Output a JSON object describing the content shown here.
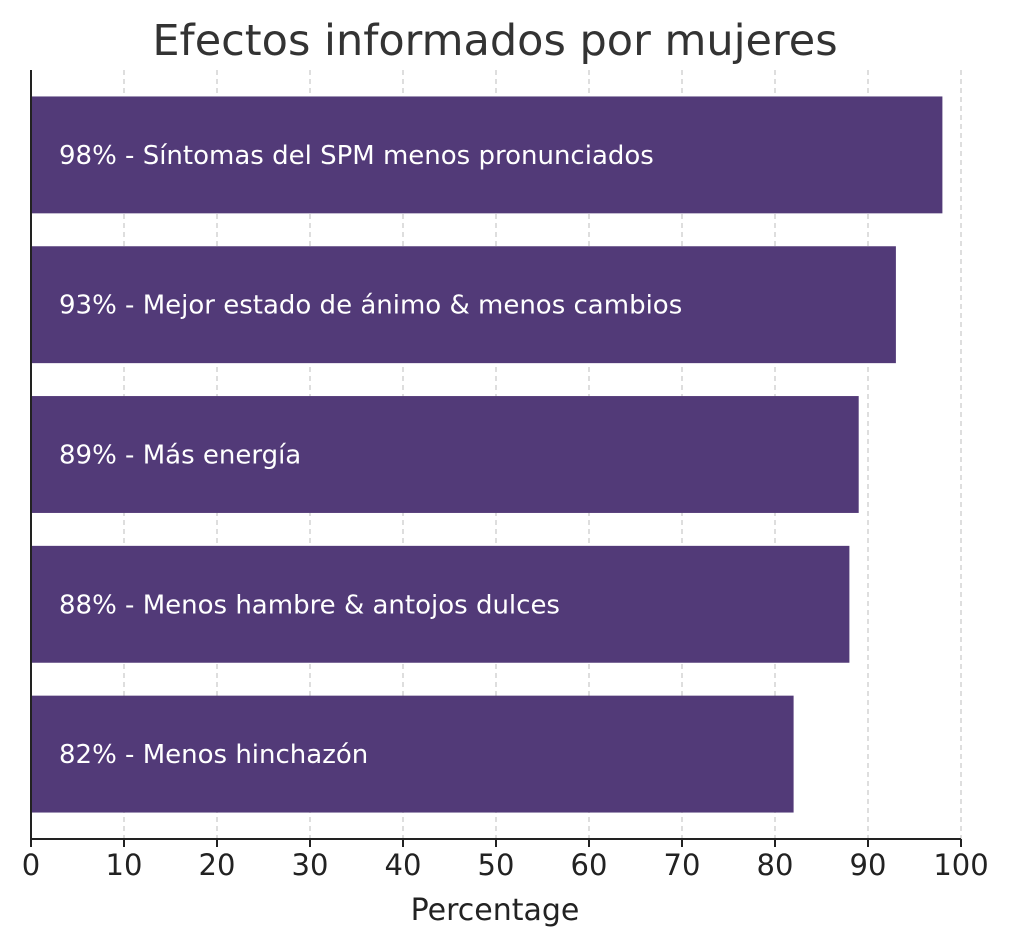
{
  "chart_data": {
    "type": "bar",
    "orientation": "horizontal",
    "title": "Efectos informados por mujeres",
    "xlabel": "Percentage",
    "ylabel": "",
    "xlim": [
      0,
      100
    ],
    "x_ticks": [
      0,
      10,
      20,
      30,
      40,
      50,
      60,
      70,
      80,
      90,
      100
    ],
    "grid": "vertical dashed",
    "bar_color": "#523a78",
    "categories": [
      "98% - Síntomas del SPM menos pronunciados",
      "93% - Mejor estado de ánimo & menos cambios",
      "89% - Más energía",
      "88% - Menos hambre & antojos dulces",
      "82% - Menos hinchazón"
    ],
    "values": [
      98,
      93,
      89,
      88,
      82
    ]
  }
}
